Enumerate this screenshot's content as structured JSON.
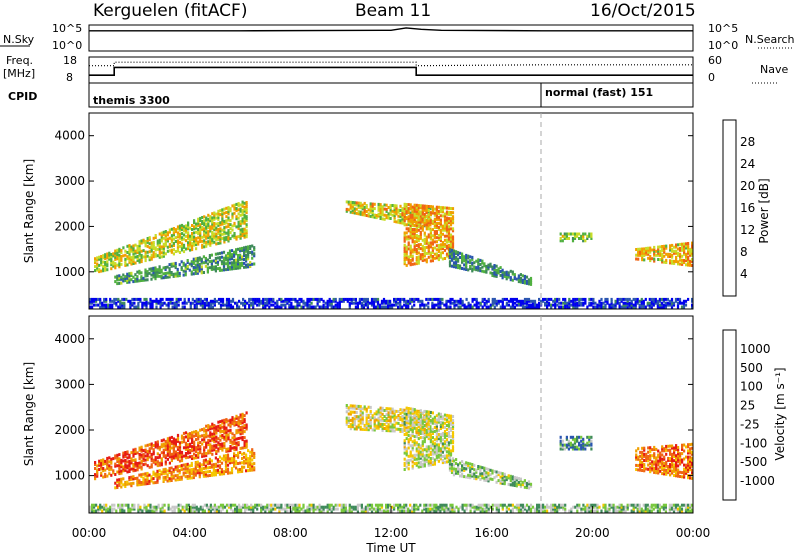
{
  "header": {
    "station": "Kerguelen (fitACF)",
    "beam": "Beam 11",
    "date": "16/Oct/2015"
  },
  "panels": {
    "nsky_label": "N.Sky",
    "nsearch_label": "N.Search",
    "freq_label_1": "Freq.",
    "freq_label_2": "[MHz]",
    "nave_label": "Nave",
    "cpid_label": "CPID",
    "nsky_ticks": [
      "10^5",
      "10^0"
    ],
    "nsearch_ticks": [
      "10^5",
      "10^0"
    ],
    "freq_ticks": [
      "18",
      "8"
    ],
    "nave_ticks": [
      "60",
      "0"
    ],
    "cpid_segments": [
      {
        "label": "themis 3300",
        "start_hour": 0
      },
      {
        "label": "normal (fast) 151",
        "start_hour": 18
      }
    ]
  },
  "chart_data": [
    {
      "type": "line",
      "name": "noise-panel",
      "xlim": [
        0,
        24
      ],
      "series": [
        {
          "name": "N.Sky",
          "x": [
            0,
            6,
            12,
            12.6,
            13.2,
            14,
            18,
            24
          ],
          "y": [
            4.2,
            4.2,
            4.3,
            4.8,
            4.5,
            4.3,
            4.2,
            4.2
          ]
        }
      ]
    },
    {
      "type": "line",
      "name": "frequency-panel",
      "xlim": [
        0,
        24
      ],
      "series": [
        {
          "name": "Freq",
          "x": [
            0,
            1,
            1,
            13,
            13,
            24
          ],
          "y": [
            11,
            11,
            14,
            14,
            11,
            11
          ]
        },
        {
          "name": "Nave",
          "x": [
            0,
            1,
            1,
            13,
            13,
            18,
            24
          ],
          "y": [
            40,
            40,
            48,
            48,
            40,
            42,
            42
          ]
        }
      ]
    },
    {
      "type": "heatmap",
      "name": "power",
      "xlabel": "",
      "ylabel": "Slant Range [km]",
      "xlim": [
        0,
        24
      ],
      "ylim": [
        180,
        4500
      ],
      "yticks": [
        1000,
        2000,
        3000,
        4000
      ],
      "colorbar_label": "Power [dB]",
      "colorbar_ticks": [
        "4",
        "8",
        "12",
        "16",
        "20",
        "24",
        "28"
      ],
      "colors": [
        "#0000ee",
        "#2a55b0",
        "#3e8a5a",
        "#50b040",
        "#c8dc28",
        "#f0a000",
        "#f06414",
        "#e61a14"
      ],
      "regions": [
        {
          "t": [
            0.2,
            6.3
          ],
          "r0": [
            950,
            1750
          ],
          "r1": [
            1300,
            2600
          ],
          "level": 0.55
        },
        {
          "t": [
            1.0,
            6.6
          ],
          "r0": [
            700,
            1100
          ],
          "r1": [
            900,
            1600
          ],
          "level": 0.35
        },
        {
          "t": [
            10.2,
            13.6
          ],
          "r0": [
            2300,
            1900
          ],
          "r1": [
            2550,
            2400
          ],
          "level": 0.6
        },
        {
          "t": [
            12.5,
            14.5
          ],
          "r0": [
            1100,
            1300
          ],
          "r1": [
            2500,
            2400
          ],
          "level": 0.7
        },
        {
          "t": [
            14.3,
            17.6
          ],
          "r0": [
            1100,
            680
          ],
          "r1": [
            1500,
            850
          ],
          "level": 0.3
        },
        {
          "t": [
            18.7,
            20.0
          ],
          "r0": [
            1650,
            1650
          ],
          "r1": [
            1850,
            1850
          ],
          "level": 0.5
        },
        {
          "t": [
            21.7,
            24.0
          ],
          "r0": [
            1250,
            1100
          ],
          "r1": [
            1500,
            1650
          ],
          "level": 0.65
        },
        {
          "t": [
            0,
            24
          ],
          "r0": [
            190,
            190
          ],
          "r1": [
            400,
            400
          ],
          "level": 0.1
        }
      ]
    },
    {
      "type": "heatmap",
      "name": "velocity",
      "xlabel": "Time UT",
      "ylabel": "Slant Range [km]",
      "xlim": [
        0,
        24
      ],
      "ylim": [
        180,
        4500
      ],
      "yticks": [
        1000,
        2000,
        3000,
        4000
      ],
      "colorbar_label": "Velocity [m s⁻¹]",
      "colorbar_ticks": [
        "-1000",
        "-500",
        "-100",
        "-25",
        "25",
        "100",
        "500",
        "1000"
      ],
      "colors": [
        "#e61a14",
        "#f06414",
        "#f0a000",
        "#f5c800",
        "#c8c8c8",
        "#78c83c",
        "#3e8a5a",
        "#2a55b0",
        "#0000ee"
      ],
      "regions": [
        {
          "t": [
            0.2,
            6.3
          ],
          "r0": [
            900,
            1600
          ],
          "r1": [
            1300,
            2400
          ],
          "level": 0.15
        },
        {
          "t": [
            1.0,
            6.6
          ],
          "r0": [
            700,
            1100
          ],
          "r1": [
            900,
            1600
          ],
          "level": 0.25
        },
        {
          "t": [
            10.2,
            13.6
          ],
          "r0": [
            2000,
            1900
          ],
          "r1": [
            2550,
            2400
          ],
          "level": 0.45
        },
        {
          "t": [
            12.5,
            14.5
          ],
          "r0": [
            1100,
            1300
          ],
          "r1": [
            2500,
            2300
          ],
          "level": 0.5
        },
        {
          "t": [
            14.3,
            17.6
          ],
          "r0": [
            1000,
            680
          ],
          "r1": [
            1400,
            850
          ],
          "level": 0.6
        },
        {
          "t": [
            18.7,
            20.0
          ],
          "r0": [
            1550,
            1550
          ],
          "r1": [
            1850,
            1850
          ],
          "level": 0.7
        },
        {
          "t": [
            21.7,
            24.0
          ],
          "r0": [
            1100,
            900
          ],
          "r1": [
            1600,
            1700
          ],
          "level": 0.2
        },
        {
          "t": [
            0,
            24
          ],
          "r0": [
            190,
            190
          ],
          "r1": [
            360,
            360
          ],
          "level": 0.6
        }
      ]
    }
  ],
  "time_axis": {
    "label": "Time UT",
    "ticks": [
      "00:00",
      "04:00",
      "08:00",
      "12:00",
      "16:00",
      "20:00",
      "00:00"
    ]
  }
}
